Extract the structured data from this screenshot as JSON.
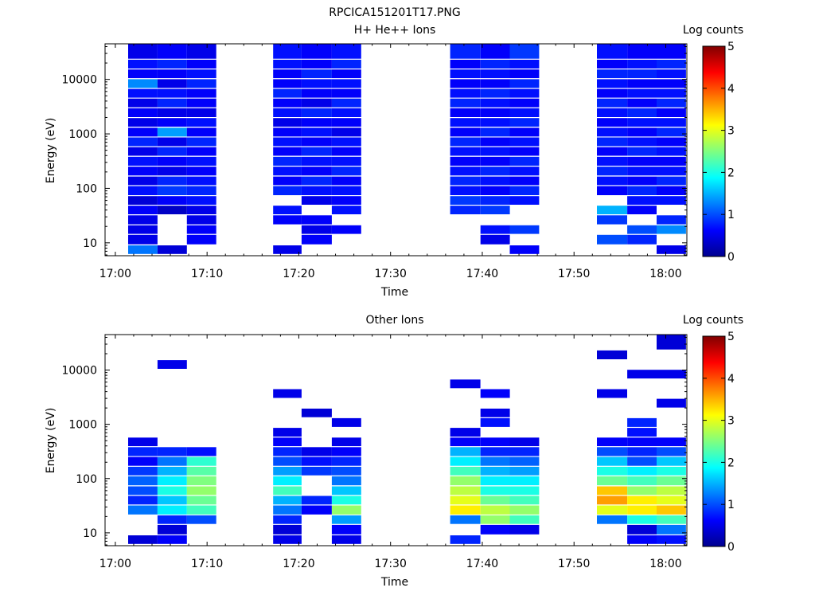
{
  "figure_title": "RPCICA151201T17.PNG",
  "colors": {
    "colormap": [
      "#00008f",
      "#0000ff",
      "#00ffff",
      "#ffff00",
      "#ff0000",
      "#800000"
    ],
    "axis": "#000000",
    "background": "#ffffff"
  },
  "chart_data": [
    {
      "type": "heatmap",
      "title": "H+ He++ Ions",
      "xlabel": "Time",
      "ylabel": "Energy (eV)",
      "y_scale": "log",
      "ylim": [
        5.8,
        45000
      ],
      "x_tick_labels": [
        "17:00",
        "17:10",
        "17:20",
        "17:30",
        "17:40",
        "17:50",
        "18:00"
      ],
      "y_tick_labels": [
        "10",
        "100",
        "1000",
        "10000"
      ],
      "colorbar": {
        "label": "Log counts",
        "range": [
          0,
          5
        ],
        "tick_labels": [
          "0",
          "1",
          "2",
          "3",
          "4",
          "5"
        ]
      },
      "time_columns": [
        "17:01-17:04",
        "17:04-17:07",
        "17:07-17:10",
        "17:17-17:20",
        "17:20-17:23",
        "17:23-17:26",
        "17:36-17:40",
        "17:40-17:43",
        "17:43-17:46",
        "17:52-17:56",
        "17:56-17:59",
        "17:59-18:02"
      ],
      "energy_channels": [
        [
          6,
          9
        ],
        [
          9,
          14
        ],
        [
          14,
          21
        ],
        [
          21,
          32
        ],
        [
          32,
          48
        ],
        [
          48,
          72
        ],
        [
          72,
          110
        ],
        [
          110,
          165
        ],
        [
          165,
          250
        ],
        [
          250,
          380
        ],
        [
          380,
          570
        ],
        [
          570,
          860
        ],
        [
          860,
          1300
        ],
        [
          1300,
          1950
        ],
        [
          1950,
          2950
        ],
        [
          2950,
          4450
        ],
        [
          4450,
          6700
        ],
        [
          6700,
          10100
        ],
        [
          10100,
          15200
        ],
        [
          15200,
          23000
        ],
        [
          23000,
          45000
        ]
      ],
      "log_counts": [
        [
          1.2,
          0.5,
          0.5,
          0.5,
          0.6,
          0.4,
          0.7,
          0.5,
          0.6,
          0.7,
          0.5,
          0.8,
          0.6,
          0.5,
          0.6,
          0.5,
          0.7,
          1.3,
          0.6,
          0.7,
          0.5
        ],
        [
          0.4,
          null,
          null,
          null,
          0.3,
          0.6,
          0.9,
          0.8,
          0.5,
          0.6,
          0.8,
          0.5,
          1.4,
          0.6,
          0.5,
          0.8,
          0.7,
          0.5,
          0.6,
          0.8,
          0.6
        ],
        [
          null,
          0.6,
          0.6,
          0.5,
          0.5,
          0.7,
          0.8,
          0.7,
          0.6,
          0.7,
          0.6,
          0.8,
          0.6,
          0.7,
          0.5,
          0.6,
          0.6,
          0.8,
          0.7,
          0.6,
          0.5
        ],
        [
          0.5,
          null,
          null,
          0.6,
          0.7,
          null,
          0.8,
          0.6,
          0.7,
          0.8,
          0.6,
          0.7,
          0.6,
          0.5,
          0.7,
          0.6,
          0.8,
          0.6,
          0.6,
          0.7,
          0.7
        ],
        [
          null,
          0.6,
          0.5,
          0.6,
          null,
          0.5,
          0.7,
          0.8,
          0.6,
          0.7,
          0.8,
          0.6,
          0.7,
          0.6,
          0.8,
          0.5,
          0.6,
          0.7,
          0.8,
          0.6,
          0.6
        ],
        [
          null,
          null,
          0.6,
          null,
          0.7,
          0.6,
          0.7,
          0.6,
          0.8,
          0.7,
          0.6,
          0.7,
          0.5,
          0.6,
          0.7,
          0.8,
          0.6,
          0.7,
          0.6,
          0.8,
          0.7
        ],
        [
          null,
          null,
          null,
          null,
          0.8,
          0.9,
          0.7,
          0.8,
          0.7,
          0.6,
          0.7,
          0.8,
          0.6,
          0.7,
          0.6,
          0.8,
          0.7,
          0.6,
          0.7,
          0.6,
          0.8
        ],
        [
          null,
          0.5,
          0.7,
          null,
          0.9,
          0.8,
          0.6,
          0.7,
          0.8,
          0.6,
          0.7,
          0.6,
          0.8,
          0.7,
          0.6,
          0.7,
          0.8,
          0.6,
          0.7,
          0.8,
          0.6
        ],
        [
          0.6,
          null,
          0.9,
          null,
          null,
          0.7,
          0.8,
          0.6,
          0.7,
          0.8,
          0.6,
          0.7,
          0.6,
          0.8,
          0.7,
          0.6,
          0.7,
          0.8,
          0.6,
          0.7,
          0.9
        ],
        [
          null,
          1.0,
          null,
          0.9,
          1.5,
          null,
          0.6,
          0.7,
          0.8,
          0.7,
          0.6,
          0.8,
          0.7,
          0.6,
          0.7,
          0.8,
          0.6,
          0.7,
          0.8,
          0.6,
          0.7
        ],
        [
          null,
          0.8,
          1.0,
          null,
          0.6,
          0.7,
          0.8,
          0.6,
          0.7,
          0.6,
          0.8,
          0.7,
          0.6,
          0.7,
          0.8,
          0.6,
          0.7,
          0.6,
          0.8,
          0.7,
          0.6
        ],
        [
          0.5,
          null,
          1.3,
          0.8,
          null,
          0.7,
          0.6,
          0.8,
          0.7,
          0.6,
          0.7,
          0.6,
          0.8,
          0.7,
          0.6,
          0.8,
          0.7,
          0.6,
          0.7,
          0.8,
          0.6
        ]
      ]
    },
    {
      "type": "heatmap",
      "title": "Other Ions",
      "xlabel": "Time",
      "ylabel": "Energy (eV)",
      "y_scale": "log",
      "ylim": [
        5.8,
        45000
      ],
      "x_tick_labels": [
        "17:00",
        "17:10",
        "17:20",
        "17:30",
        "17:40",
        "17:50",
        "18:00"
      ],
      "y_tick_labels": [
        "10",
        "100",
        "1000",
        "10000"
      ],
      "colorbar": {
        "label": "Log counts",
        "range": [
          0,
          5
        ],
        "tick_labels": [
          "0",
          "1",
          "2",
          "3",
          "4",
          "5"
        ]
      },
      "time_columns": [
        "17:01-17:04",
        "17:04-17:07",
        "17:07-17:10",
        "17:17-17:20",
        "17:20-17:23",
        "17:23-17:26",
        "17:36-17:40",
        "17:40-17:43",
        "17:43-17:46",
        "17:52-17:56",
        "17:56-17:59",
        "17:59-18:02"
      ],
      "energy_channels": [
        [
          6,
          9
        ],
        [
          9,
          14
        ],
        [
          14,
          21
        ],
        [
          21,
          32
        ],
        [
          32,
          48
        ],
        [
          48,
          72
        ],
        [
          72,
          110
        ],
        [
          110,
          165
        ],
        [
          165,
          250
        ],
        [
          250,
          380
        ],
        [
          380,
          570
        ],
        [
          570,
          860
        ],
        [
          860,
          1300
        ],
        [
          1300,
          1950
        ],
        [
          1950,
          2950
        ],
        [
          2950,
          4450
        ],
        [
          4450,
          6700
        ],
        [
          6700,
          10100
        ],
        [
          10100,
          15200
        ],
        [
          15200,
          23000
        ],
        [
          23000,
          45000
        ]
      ],
      "log_counts": [
        [
          0.4,
          null,
          null,
          1.2,
          0.8,
          1.0,
          1.1,
          0.9,
          0.6,
          0.8,
          0.5,
          null,
          null,
          null,
          null,
          null,
          null,
          null,
          null,
          null,
          null
        ],
        [
          0.6,
          0.4,
          0.8,
          1.8,
          1.6,
          2.0,
          1.8,
          1.5,
          1.2,
          0.8,
          null,
          null,
          null,
          null,
          null,
          null,
          null,
          null,
          0.5,
          null,
          null
        ],
        [
          null,
          null,
          1.0,
          2.2,
          2.4,
          2.6,
          2.5,
          2.3,
          2.1,
          0.7,
          null,
          null,
          null,
          null,
          null,
          null,
          null,
          null,
          null,
          null,
          null
        ],
        [
          0.5,
          0.4,
          0.8,
          1.2,
          1.5,
          2.2,
          1.8,
          1.4,
          1.0,
          0.8,
          0.6,
          0.5,
          null,
          null,
          null,
          0.5,
          null,
          null,
          null,
          null,
          null
        ],
        [
          null,
          null,
          null,
          0.6,
          0.8,
          null,
          null,
          0.9,
          0.7,
          0.5,
          null,
          null,
          null,
          0.4,
          null,
          null,
          null,
          null,
          null,
          null,
          null
        ],
        [
          0.5,
          0.6,
          1.4,
          2.6,
          2.0,
          1.6,
          1.2,
          1.0,
          0.8,
          0.6,
          0.5,
          null,
          0.5,
          null,
          null,
          null,
          null,
          null,
          null,
          null,
          null
        ],
        [
          0.8,
          null,
          1.2,
          3.2,
          3.0,
          2.8,
          2.6,
          2.2,
          1.8,
          1.5,
          0.6,
          0.5,
          null,
          null,
          null,
          null,
          0.5,
          null,
          null,
          null,
          null
        ],
        [
          null,
          0.6,
          2.6,
          2.8,
          2.4,
          2.0,
          1.8,
          1.5,
          1.2,
          0.8,
          0.6,
          null,
          0.7,
          0.5,
          null,
          0.6,
          null,
          null,
          null,
          null,
          null
        ],
        [
          null,
          0.5,
          2.2,
          2.6,
          2.2,
          2.0,
          1.8,
          1.4,
          1.1,
          0.8,
          0.5,
          null,
          null,
          null,
          null,
          null,
          null,
          null,
          null,
          null,
          null
        ],
        [
          null,
          null,
          1.2,
          3.0,
          3.6,
          3.4,
          2.4,
          2.0,
          1.6,
          1.0,
          0.6,
          null,
          null,
          null,
          null,
          0.5,
          null,
          null,
          null,
          0.4,
          null
        ],
        [
          0.6,
          0.4,
          2.0,
          3.2,
          3.2,
          2.6,
          2.2,
          1.8,
          1.0,
          0.8,
          0.6,
          0.7,
          0.8,
          null,
          null,
          null,
          null,
          0.5,
          null,
          null,
          null
        ],
        [
          0.7,
          1.2,
          2.2,
          3.4,
          3.0,
          2.8,
          2.4,
          2.0,
          1.6,
          1.0,
          0.6,
          null,
          null,
          null,
          0.5,
          null,
          null,
          0.5,
          null,
          null,
          0.4
        ]
      ]
    }
  ]
}
